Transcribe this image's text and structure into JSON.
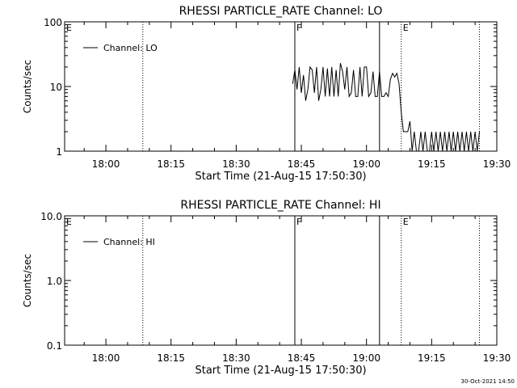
{
  "timestamp": "30-Oct-2021 14:50",
  "chart_data": [
    {
      "type": "line",
      "title": "RHESSI PARTICLE_RATE Channel: LO",
      "xlabel": "Start Time (21-Aug-15 17:50:30)",
      "ylabel": "Counts/sec",
      "y_scale": "log",
      "ylim": [
        1,
        100
      ],
      "y_ticks": [
        {
          "v": 1,
          "label": "1"
        },
        {
          "v": 10,
          "label": "10"
        },
        {
          "v": 100,
          "label": "100"
        }
      ],
      "xlim": [
        "17:50:30",
        "19:30"
      ],
      "x_ticks": [
        "18:00",
        "18:15",
        "18:30",
        "18:45",
        "19:00",
        "19:15",
        "19:30"
      ],
      "legend": {
        "label": "Channel: LO",
        "position": "top-left"
      },
      "markers": [
        {
          "label": "E",
          "time": "17:50:30",
          "style": "none"
        },
        {
          "label": "",
          "time": "18:08:30",
          "style": "dotted"
        },
        {
          "label": "F",
          "time": "18:43:30",
          "style": "solid"
        },
        {
          "label": "",
          "time": "19:03:00",
          "style": "solid"
        },
        {
          "label": "E",
          "time": "19:08:00",
          "style": "dotted"
        },
        {
          "label": "",
          "time": "19:26:00",
          "style": "dotted"
        }
      ],
      "series": [
        {
          "name": "Channel: LO",
          "x": [
            "18:43:00",
            "18:43:30",
            "18:44:00",
            "18:44:30",
            "18:45:00",
            "18:45:30",
            "18:46:00",
            "18:46:30",
            "18:47:00",
            "18:47:30",
            "18:48:00",
            "18:48:30",
            "18:49:00",
            "18:49:30",
            "18:50:00",
            "18:50:30",
            "18:51:00",
            "18:51:30",
            "18:52:00",
            "18:52:30",
            "18:53:00",
            "18:53:30",
            "18:54:00",
            "18:54:30",
            "18:55:00",
            "18:55:30",
            "18:56:00",
            "18:56:30",
            "18:57:00",
            "18:57:30",
            "18:58:00",
            "18:58:30",
            "18:59:00",
            "18:59:30",
            "19:00:00",
            "19:00:30",
            "19:01:00",
            "19:01:30",
            "19:02:00",
            "19:02:30",
            "19:03:00",
            "19:03:30",
            "19:04:00",
            "19:04:30",
            "19:05:00",
            "19:05:30",
            "19:06:00",
            "19:06:30",
            "19:07:00",
            "19:07:30",
            "19:08:00",
            "19:08:30",
            "19:09:00",
            "19:09:30",
            "19:10:00",
            "19:10:30",
            "19:11:00",
            "19:11:30",
            "19:12:00",
            "19:12:30",
            "19:13:00",
            "19:13:30",
            "19:14:00",
            "19:14:30",
            "19:15:00",
            "19:15:30",
            "19:16:00",
            "19:16:30",
            "19:17:00",
            "19:17:30",
            "19:18:00",
            "19:18:30",
            "19:19:00",
            "19:19:30",
            "19:20:00",
            "19:20:30",
            "19:21:00",
            "19:21:30",
            "19:22:00",
            "19:22:30",
            "19:23:00",
            "19:23:30",
            "19:24:00",
            "19:24:30",
            "19:25:00",
            "19:25:30",
            "19:26:00"
          ],
          "values": [
            11,
            18,
            9,
            20,
            8,
            15,
            6,
            9,
            20,
            18,
            8,
            20,
            6,
            9,
            20,
            7,
            19,
            7,
            20,
            7,
            18,
            7,
            23,
            17,
            9,
            20,
            7,
            8,
            18,
            7,
            7,
            20,
            7,
            20,
            20,
            7,
            8,
            17,
            7,
            7,
            17,
            7,
            7,
            8,
            7,
            13,
            16,
            14,
            16,
            11,
            4,
            2,
            2,
            2,
            2.9,
            1,
            2,
            1,
            1,
            2,
            1,
            2,
            1,
            1,
            2,
            1,
            2,
            1,
            2,
            1,
            2,
            1,
            2,
            1,
            2,
            1,
            2,
            1,
            2,
            1,
            2,
            1,
            2,
            1,
            2,
            1,
            2
          ]
        }
      ]
    },
    {
      "type": "line",
      "title": "RHESSI PARTICLE_RATE Channel: HI",
      "xlabel": "Start Time (21-Aug-15 17:50:30)",
      "ylabel": "Counts/sec",
      "y_scale": "log",
      "ylim": [
        0.1,
        10
      ],
      "y_ticks": [
        {
          "v": 0.1,
          "label": "0.1"
        },
        {
          "v": 1,
          "label": "1.0"
        },
        {
          "v": 10,
          "label": "10.0"
        }
      ],
      "xlim": [
        "17:50:30",
        "19:30"
      ],
      "x_ticks": [
        "18:00",
        "18:15",
        "18:30",
        "18:45",
        "19:00",
        "19:15",
        "19:30"
      ],
      "legend": {
        "label": "Channel: HI",
        "position": "top-left"
      },
      "markers": [
        {
          "label": "E",
          "time": "17:50:30",
          "style": "none"
        },
        {
          "label": "",
          "time": "18:08:30",
          "style": "dotted"
        },
        {
          "label": "F",
          "time": "18:43:30",
          "style": "solid"
        },
        {
          "label": "",
          "time": "19:03:00",
          "style": "solid"
        },
        {
          "label": "E",
          "time": "19:08:00",
          "style": "dotted"
        },
        {
          "label": "",
          "time": "19:26:00",
          "style": "dotted"
        }
      ],
      "series": [
        {
          "name": "Channel: HI",
          "x": [],
          "values": []
        }
      ]
    }
  ]
}
